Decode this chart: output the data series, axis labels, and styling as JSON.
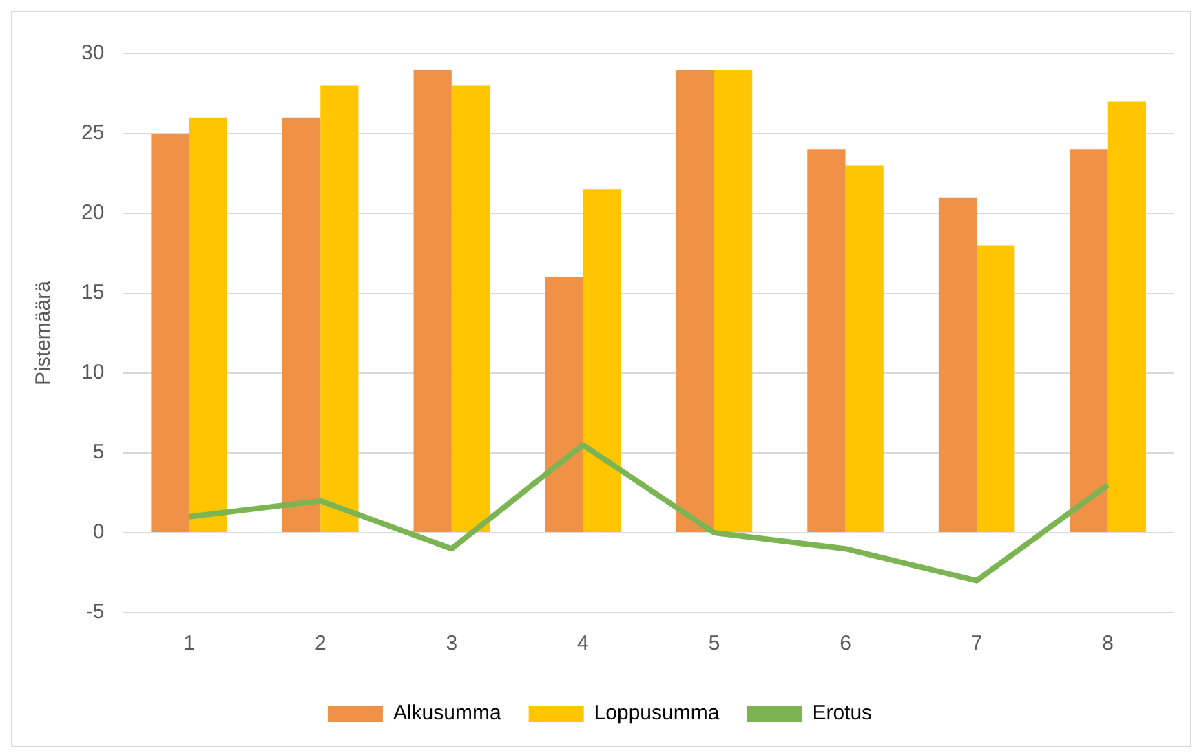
{
  "chart_data": {
    "type": "bar",
    "ylabel": "Pistemäärä",
    "categories": [
      "1",
      "2",
      "3",
      "4",
      "5",
      "6",
      "7",
      "8"
    ],
    "series": [
      {
        "name": "Alkusumma",
        "color": "#f09148",
        "values": [
          25,
          26,
          29,
          16,
          29,
          24,
          21,
          24
        ]
      },
      {
        "name": "Loppusumma",
        "color": "#ffc600",
        "values": [
          26,
          28,
          28,
          21.5,
          29,
          23,
          18,
          27
        ]
      },
      {
        "name": "Erotus",
        "type": "line",
        "color": "#7cb454",
        "values": [
          1,
          2,
          -1,
          5.5,
          0,
          -1,
          -3,
          3
        ]
      }
    ],
    "ylim": [
      -5,
      30
    ],
    "yticks": [
      -5,
      0,
      5,
      10,
      15,
      20,
      25,
      30
    ],
    "grid": "y",
    "legend": "bottom",
    "marker": "none"
  }
}
